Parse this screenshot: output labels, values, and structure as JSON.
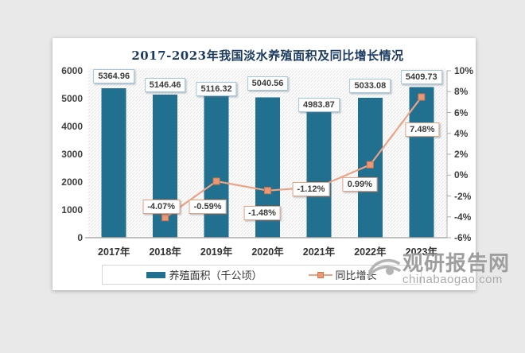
{
  "page": {
    "background": "#e9e9e9",
    "card_background": "#ffffff"
  },
  "watermark": {
    "site_name": "观研报告网",
    "site_url": "chinabaogao.com",
    "color": "#9e9e9e"
  },
  "chart_data": {
    "type": "bar",
    "subtype": "bar-line-combo",
    "title": "2017-2023年我国淡水养殖面积及同比增长情况",
    "title_color": "#1b3a5f",
    "categories": [
      "2017年",
      "2018年",
      "2019年",
      "2020年",
      "2021年",
      "2022年",
      "2023年"
    ],
    "series": [
      {
        "name": "养殖面积（千公顷）",
        "type": "bar",
        "axis": "left",
        "color": "#21708f",
        "values": [
          5364.96,
          5146.46,
          5116.32,
          5040.56,
          4983.87,
          5033.08,
          5409.73
        ],
        "labels": [
          "5364.96",
          "5146.46",
          "5116.32",
          "5040.56",
          "4983.87",
          "5033.08",
          "5409.73"
        ]
      },
      {
        "name": "同比增长",
        "type": "line",
        "axis": "right",
        "color": "#eca285",
        "marker_fill": "#ec9877",
        "marker_stroke": "#c97a52",
        "values": [
          null,
          -4.07,
          -0.59,
          -1.48,
          -1.12,
          0.99,
          7.48
        ],
        "labels": [
          null,
          "-4.07%",
          "-0.59%",
          "-1.48%",
          "-1.12%",
          "0.99%",
          "7.48%"
        ]
      }
    ],
    "left_axis": {
      "min": 0,
      "max": 6000,
      "step": 1000,
      "ticks": [
        "0",
        "1000",
        "2000",
        "3000",
        "4000",
        "5000",
        "6000"
      ]
    },
    "right_axis": {
      "min": -6,
      "max": 10,
      "step": 2,
      "ticks": [
        "-6%",
        "-4%",
        "-2%",
        "0%",
        "2%",
        "4%",
        "6%",
        "8%",
        "10%"
      ]
    },
    "legend": {
      "position": "bottom",
      "items": [
        "养殖面积（千公顷）",
        "同比增长"
      ]
    },
    "grid": false,
    "plot_hatch": true
  }
}
